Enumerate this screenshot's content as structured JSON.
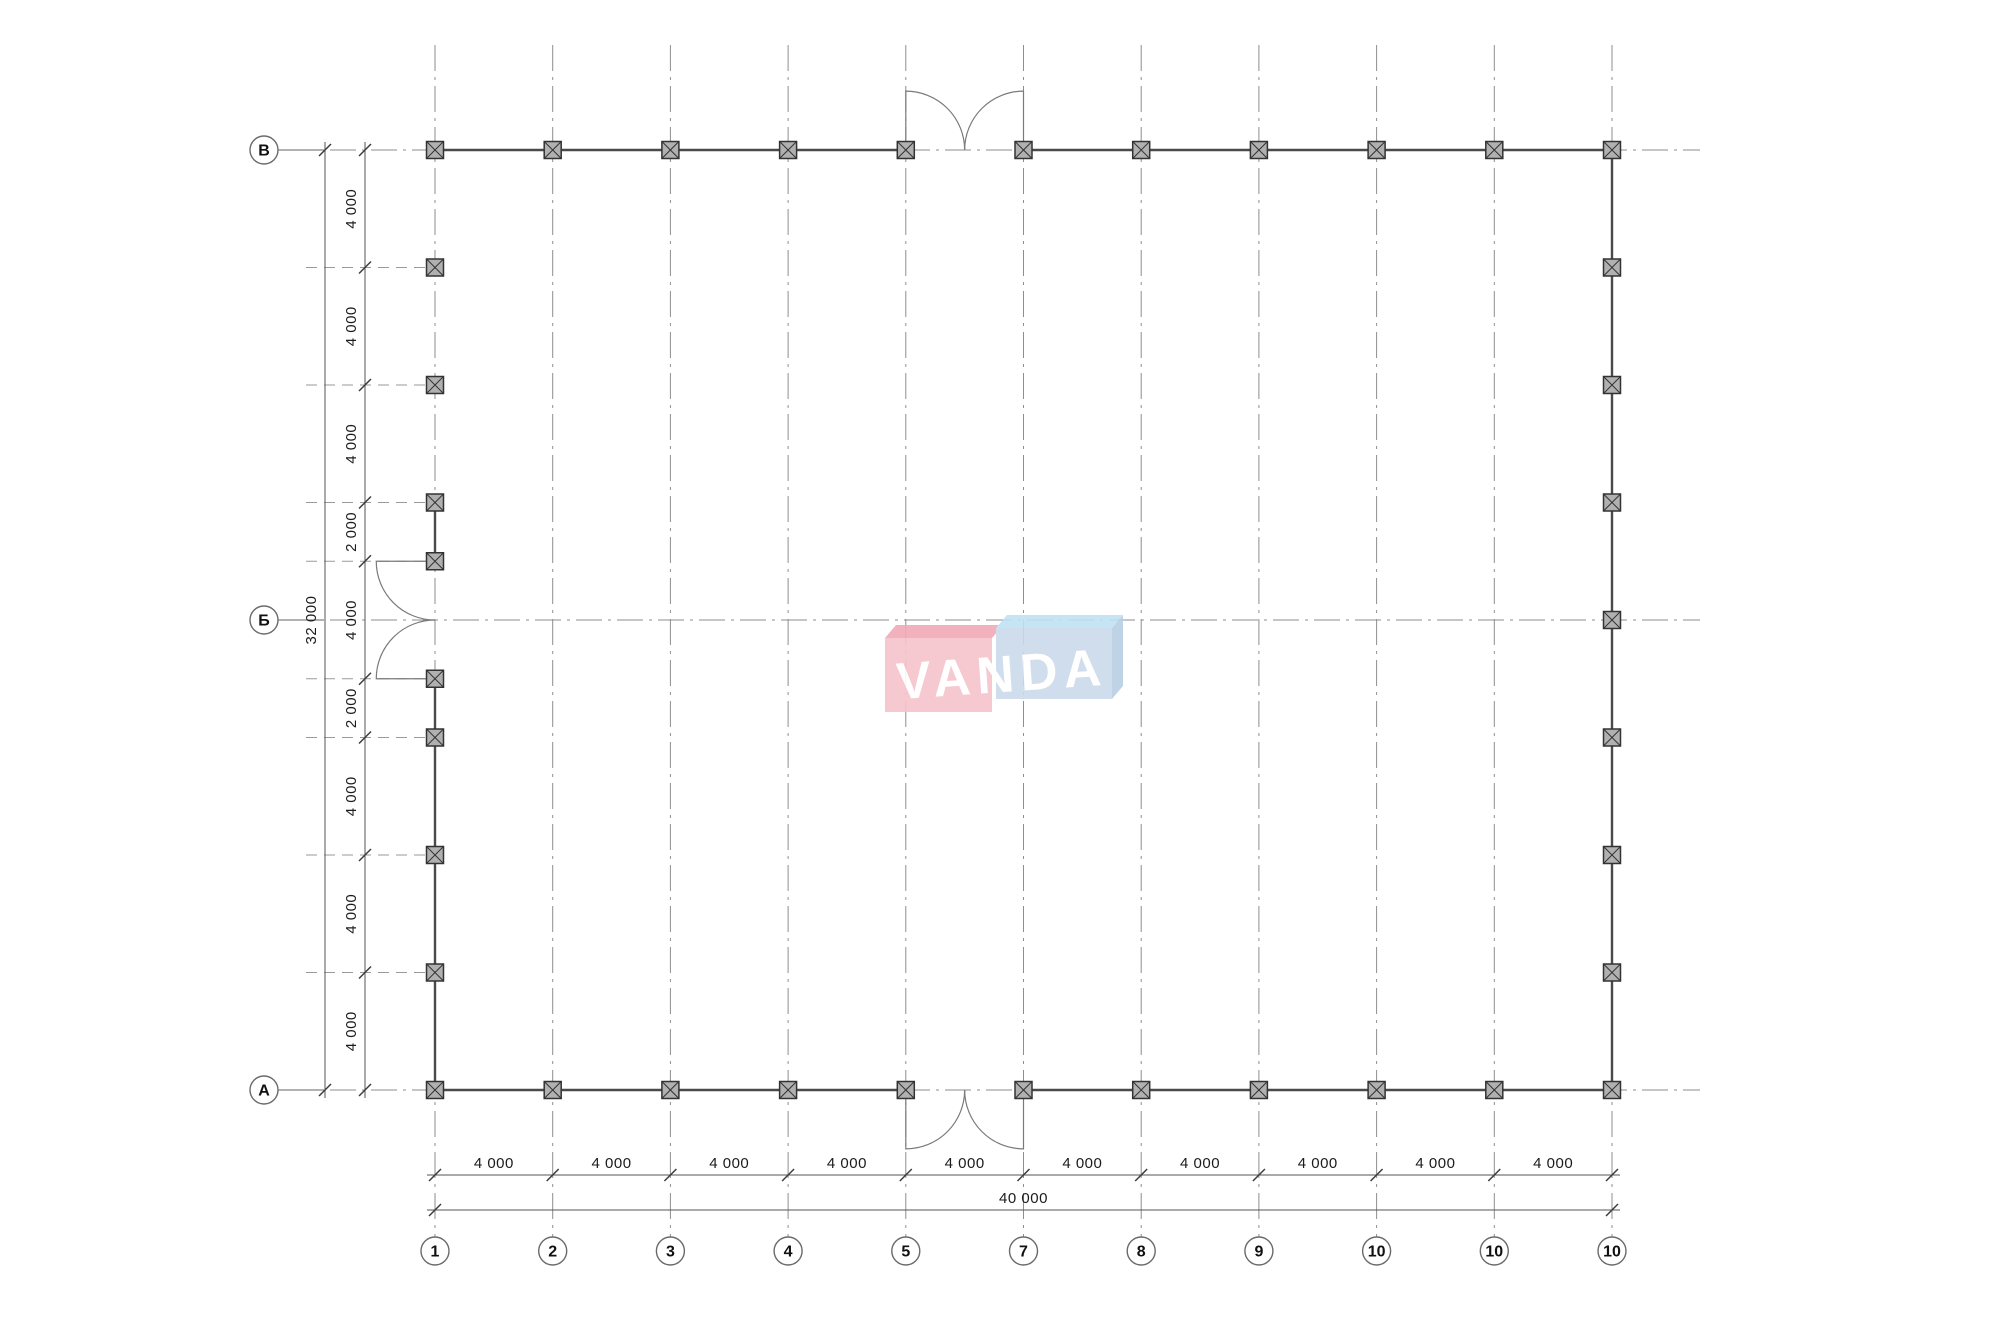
{
  "drawing": {
    "kind": "floor-plan",
    "ink_color": "#4a4a4a",
    "grid_color": "#8e8e8e"
  },
  "axes": {
    "rows": [
      "В",
      "Б",
      "А"
    ],
    "cols": [
      "1",
      "2",
      "3",
      "4",
      "5",
      "7",
      "8",
      "9",
      "10",
      "10",
      "10"
    ]
  },
  "dimensions": {
    "bottom_segments": [
      "4 000",
      "4 000",
      "4 000",
      "4 000",
      "4 000",
      "4 000",
      "4 000",
      "4 000",
      "4 000",
      "4 000"
    ],
    "bottom_total": "40 000",
    "left_segments": [
      "4 000",
      "4 000",
      "4 000",
      "2 000",
      "4 000",
      "2 000",
      "4 000",
      "4 000",
      "4 000"
    ],
    "left_total": "32 000"
  },
  "logo": {
    "text": "VANDA",
    "pink_front": "#f6c3cc",
    "pink_top": "#f0a9b6",
    "blue_front": "#ccdaeb",
    "blue_top": "#bfe2f3",
    "blue_side": "#b9cfe4"
  }
}
